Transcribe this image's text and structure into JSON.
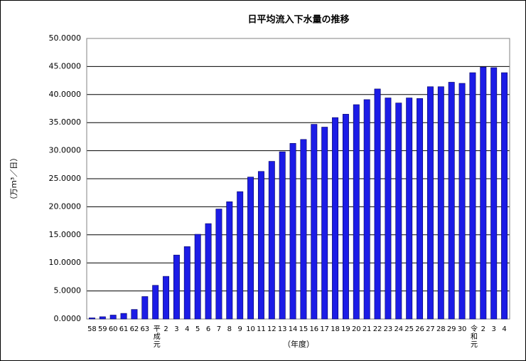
{
  "chart_data": {
    "type": "bar",
    "title": "日平均流入下水量の推移",
    "x_label": "（年度）",
    "y_label": "（万ｍ³／日）",
    "categories": [
      "58",
      "59",
      "60",
      "61",
      "62",
      "63",
      "平成元",
      "2",
      "3",
      "4",
      "5",
      "6",
      "7",
      "8",
      "9",
      "10",
      "11",
      "12",
      "13",
      "14",
      "15",
      "16",
      "17",
      "18",
      "19",
      "20",
      "21",
      "22",
      "23",
      "24",
      "25",
      "26",
      "27",
      "28",
      "29",
      "30",
      "令和元",
      "2",
      "3",
      "4"
    ],
    "values": [
      0.2,
      0.4,
      0.7,
      1.0,
      1.7,
      4.0,
      6.0,
      7.6,
      11.4,
      12.9,
      15.1,
      17.0,
      19.6,
      20.9,
      22.7,
      25.3,
      26.3,
      28.1,
      29.8,
      31.3,
      32.0,
      34.7,
      34.2,
      35.9,
      36.5,
      38.2,
      39.1,
      41.0,
      39.4,
      38.5,
      39.4,
      39.3,
      41.4,
      41.4,
      42.2,
      42.0,
      43.9,
      44.9,
      44.8,
      43.9
    ],
    "color": "#1c1ce6",
    "ylim": [
      0,
      50
    ],
    "yticks": [
      {
        "value": 0,
        "label": "0.0000"
      },
      {
        "value": 5,
        "label": "5.0000"
      },
      {
        "value": 10,
        "label": "10.0000"
      },
      {
        "value": 15,
        "label": "15.0000"
      },
      {
        "value": 20,
        "label": "20.0000"
      },
      {
        "value": 25,
        "label": "25.0000"
      },
      {
        "value": 30,
        "label": "30.0000"
      },
      {
        "value": 35,
        "label": "35.0000"
      },
      {
        "value": 40,
        "label": "40.0000"
      },
      {
        "value": 45,
        "label": "45.0000"
      },
      {
        "value": 50,
        "label": "50.0000"
      }
    ],
    "grid": true
  }
}
